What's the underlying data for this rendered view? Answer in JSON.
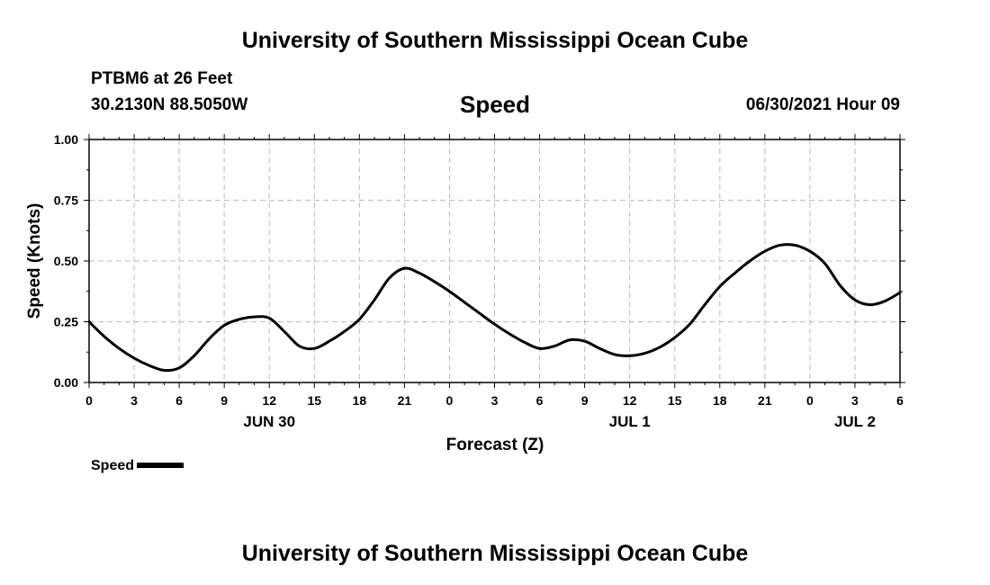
{
  "header": {
    "title": "University of Southern Mississippi Ocean Cube",
    "station": "PTBM6 at 26 Feet",
    "coords": "30.2130N  88.5050W",
    "variable": "Speed",
    "datetime": "06/30/2021 Hour 09"
  },
  "footer": {
    "title": "University of Southern Mississippi Ocean Cube"
  },
  "legend": {
    "label": "Speed",
    "color": "#000000"
  },
  "chart_data": {
    "type": "line",
    "title": "Speed",
    "xlabel": "Forecast (Z)",
    "ylabel": "Speed (Knots)",
    "x_unit": "hours since 2021-06-30 00Z",
    "xlim": [
      0,
      54
    ],
    "ylim": [
      0,
      1
    ],
    "grid": true,
    "x_ticks": [
      0,
      3,
      6,
      9,
      12,
      15,
      18,
      21,
      24,
      27,
      30,
      33,
      36,
      39,
      42,
      45,
      48,
      51,
      54
    ],
    "x_tick_labels": [
      "0",
      "3",
      "6",
      "9",
      "12",
      "15",
      "18",
      "21",
      "0",
      "3",
      "6",
      "9",
      "12",
      "15",
      "18",
      "21",
      "0",
      "3",
      "6"
    ],
    "y_ticks": [
      0,
      0.25,
      0.5,
      0.75,
      1.0
    ],
    "y_tick_labels": [
      "0.00",
      "0.25",
      "0.50",
      "0.75",
      "1.00"
    ],
    "date_labels": [
      {
        "x": 12,
        "label": "JUN 30"
      },
      {
        "x": 36,
        "label": "JUL 1"
      },
      {
        "x": 51,
        "label": "JUL 2"
      }
    ],
    "series": [
      {
        "name": "Speed",
        "color": "#000000",
        "x": [
          0,
          1,
          2,
          3,
          4,
          5,
          6,
          7,
          8,
          9,
          10,
          11,
          12,
          13,
          14,
          15,
          16,
          17,
          18,
          19,
          20,
          21,
          22,
          23,
          24,
          25,
          26,
          27,
          28,
          29,
          30,
          31,
          32,
          33,
          34,
          35,
          36,
          37,
          38,
          39,
          40,
          41,
          42,
          43,
          44,
          45,
          46,
          47,
          48,
          49,
          50,
          51,
          52,
          53,
          54
        ],
        "values": [
          0.25,
          0.19,
          0.14,
          0.1,
          0.07,
          0.05,
          0.06,
          0.11,
          0.18,
          0.235,
          0.26,
          0.27,
          0.265,
          0.21,
          0.15,
          0.14,
          0.17,
          0.21,
          0.26,
          0.34,
          0.43,
          0.47,
          0.45,
          0.415,
          0.375,
          0.33,
          0.285,
          0.24,
          0.2,
          0.165,
          0.14,
          0.15,
          0.175,
          0.17,
          0.14,
          0.115,
          0.11,
          0.12,
          0.145,
          0.185,
          0.24,
          0.32,
          0.395,
          0.45,
          0.5,
          0.54,
          0.565,
          0.565,
          0.54,
          0.49,
          0.4,
          0.34,
          0.32,
          0.335,
          0.37
        ]
      }
    ]
  }
}
